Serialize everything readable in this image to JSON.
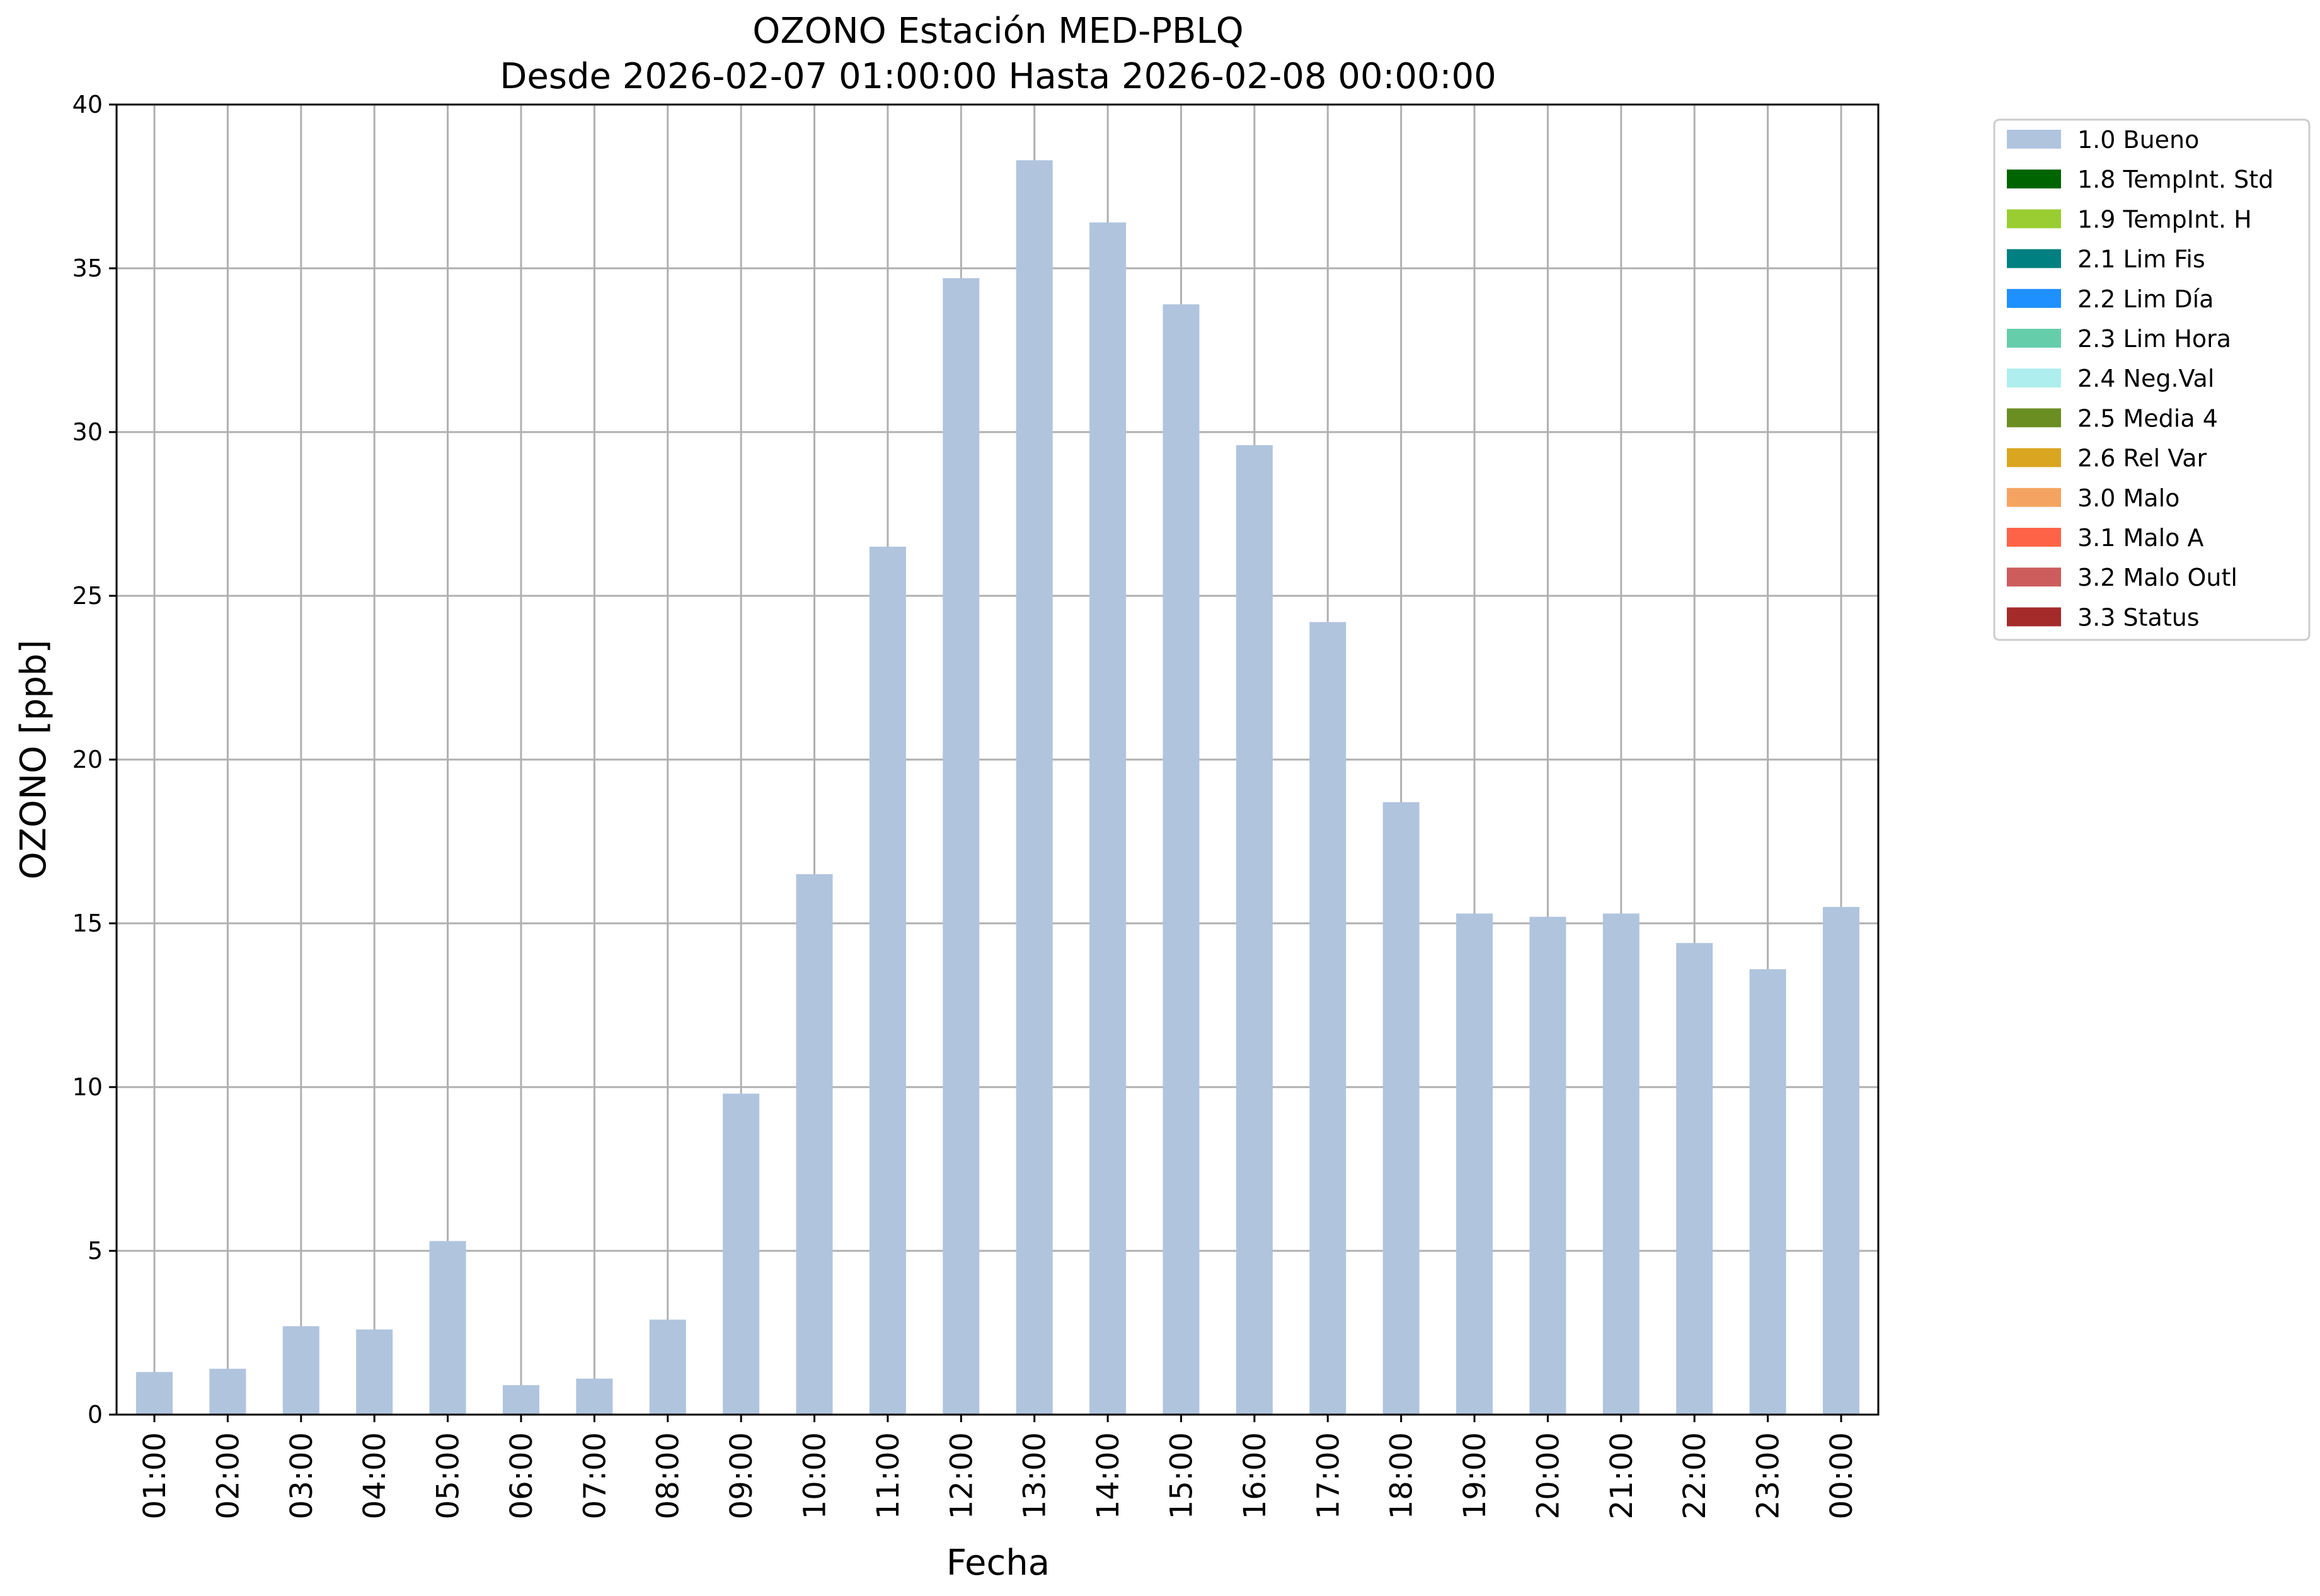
{
  "chart_data": {
    "type": "bar",
    "title": "OZONO Estación MED-PBLQ",
    "subtitle": "Desde 2026-02-07 01:00:00 Hasta 2026-02-08 00:00:00",
    "xlabel": "Fecha",
    "ylabel": "OZONO [ppb]",
    "ylim": [
      0,
      40
    ],
    "yticks": [
      0,
      5,
      10,
      15,
      20,
      25,
      30,
      35,
      40
    ],
    "grid": true,
    "legend_position": "outside-top-right",
    "categories": [
      "01:00",
      "02:00",
      "03:00",
      "04:00",
      "05:00",
      "06:00",
      "07:00",
      "08:00",
      "09:00",
      "10:00",
      "11:00",
      "12:00",
      "13:00",
      "14:00",
      "15:00",
      "16:00",
      "17:00",
      "18:00",
      "19:00",
      "20:00",
      "21:00",
      "22:00",
      "23:00",
      "00:00"
    ],
    "series": [
      {
        "name": "1.0 Bueno",
        "color": "#b0c4de",
        "values": [
          1.3,
          1.4,
          2.7,
          2.6,
          5.3,
          0.9,
          1.1,
          2.9,
          9.8,
          16.5,
          26.5,
          34.7,
          38.3,
          36.4,
          33.9,
          29.6,
          24.2,
          18.7,
          15.3,
          15.2,
          15.3,
          14.4,
          13.6,
          15.5
        ]
      }
    ],
    "legend": [
      {
        "label": "1.0 Bueno",
        "color": "#b0c4de"
      },
      {
        "label": "1.8 TempInt. Std",
        "color": "#006400"
      },
      {
        "label": "1.9 TempInt. H",
        "color": "#9acd32"
      },
      {
        "label": "2.1 Lim Fis",
        "color": "#008080"
      },
      {
        "label": "2.2 Lim Día",
        "color": "#1e90ff"
      },
      {
        "label": "2.3 Lim Hora",
        "color": "#66cdaa"
      },
      {
        "label": "2.4 Neg.Val",
        "color": "#afeeee"
      },
      {
        "label": "2.5 Media 4",
        "color": "#6b8e23"
      },
      {
        "label": "2.6 Rel Var",
        "color": "#daa520"
      },
      {
        "label": "3.0 Malo",
        "color": "#f4a460"
      },
      {
        "label": "3.1 Malo A",
        "color": "#ff6347"
      },
      {
        "label": "3.2 Malo Outl",
        "color": "#cd5c5c"
      },
      {
        "label": "3.3 Status",
        "color": "#a52a2a"
      }
    ]
  }
}
